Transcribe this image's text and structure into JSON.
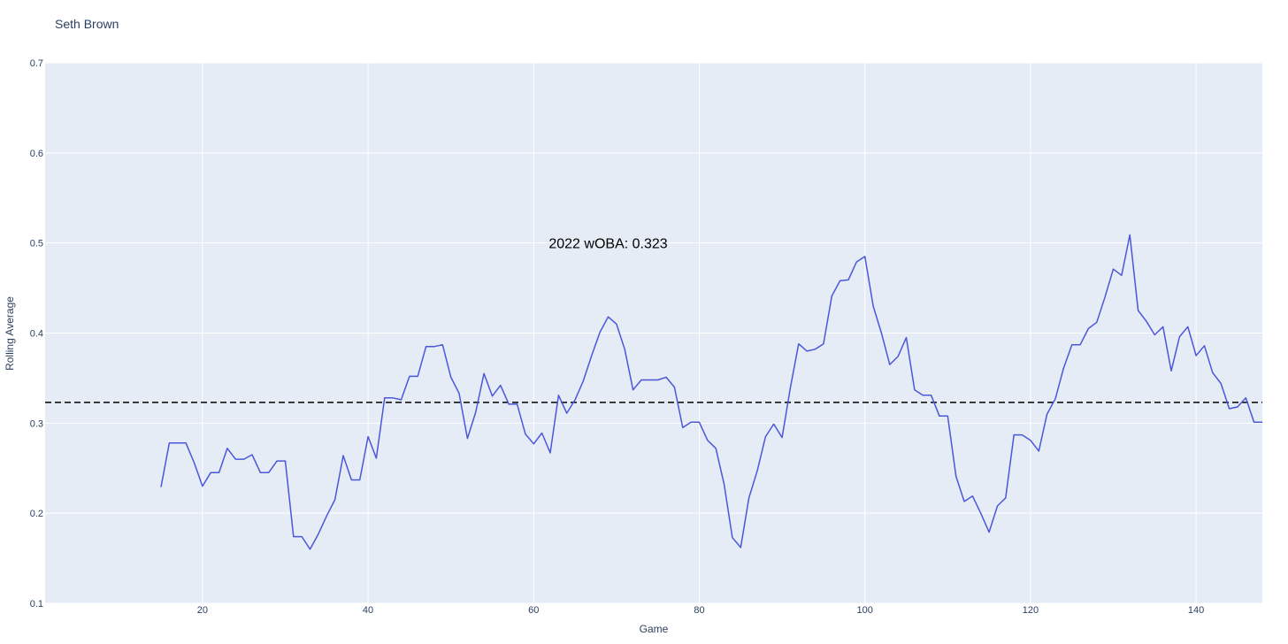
{
  "chart_data": {
    "type": "line",
    "title": "Seth Brown",
    "xlabel": "Game",
    "ylabel": "Rolling Average",
    "xlim": [
      1,
      148
    ],
    "ylim": [
      0.1,
      0.7
    ],
    "x_ticks": [
      20,
      40,
      60,
      80,
      100,
      120,
      140
    ],
    "y_ticks": [
      0.1,
      0.2,
      0.3,
      0.4,
      0.5,
      0.6,
      0.7
    ],
    "x_tick_labels": [
      "20",
      "40",
      "60",
      "80",
      "100",
      "120",
      "140"
    ],
    "y_tick_labels": [
      "0.1",
      "0.2",
      "0.3",
      "0.4",
      "0.5",
      "0.6",
      "0.7"
    ],
    "grid": true,
    "series": [
      {
        "color": "#4a57d9",
        "x": [
          15,
          16,
          17,
          18,
          19,
          20,
          21,
          22,
          23,
          24,
          25,
          26,
          27,
          28,
          29,
          30,
          31,
          32,
          33,
          34,
          35,
          36,
          37,
          38,
          39,
          40,
          41,
          42,
          43,
          44,
          45,
          46,
          47,
          48,
          49,
          50,
          51,
          52,
          53,
          54,
          55,
          56,
          57,
          58,
          59,
          60,
          61,
          62,
          63,
          64,
          65,
          66,
          67,
          68,
          69,
          70,
          71,
          72,
          73,
          74,
          75,
          76,
          77,
          78,
          79,
          80,
          81,
          82,
          83,
          84,
          85,
          86,
          87,
          88,
          89,
          90,
          91,
          92,
          93,
          94,
          95,
          96,
          97,
          98,
          99,
          100,
          101,
          102,
          103,
          104,
          105,
          106,
          107,
          108,
          109,
          110,
          111,
          112,
          113,
          114,
          115,
          116,
          117,
          118,
          119,
          120,
          121,
          122,
          123,
          124,
          125,
          126,
          127,
          128,
          129,
          130,
          131,
          132,
          133,
          134,
          135,
          136,
          137,
          138,
          139,
          140,
          141,
          142,
          143,
          144,
          145,
          146,
          147,
          148
        ],
        "y": [
          0.229,
          0.278,
          0.278,
          0.278,
          0.256,
          0.23,
          0.245,
          0.245,
          0.272,
          0.26,
          0.26,
          0.265,
          0.245,
          0.245,
          0.258,
          0.258,
          0.174,
          0.174,
          0.16,
          0.177,
          0.197,
          0.215,
          0.264,
          0.237,
          0.237,
          0.285,
          0.261,
          0.328,
          0.328,
          0.326,
          0.352,
          0.352,
          0.385,
          0.385,
          0.387,
          0.351,
          0.333,
          0.283,
          0.312,
          0.355,
          0.33,
          0.342,
          0.321,
          0.321,
          0.288,
          0.277,
          0.289,
          0.267,
          0.331,
          0.311,
          0.326,
          0.347,
          0.375,
          0.401,
          0.418,
          0.41,
          0.382,
          0.337,
          0.348,
          0.348,
          0.348,
          0.351,
          0.34,
          0.295,
          0.301,
          0.301,
          0.281,
          0.272,
          0.232,
          0.173,
          0.162,
          0.217,
          0.247,
          0.285,
          0.299,
          0.284,
          0.339,
          0.388,
          0.38,
          0.382,
          0.388,
          0.441,
          0.458,
          0.459,
          0.479,
          0.485,
          0.43,
          0.4,
          0.365,
          0.374,
          0.395,
          0.337,
          0.331,
          0.331,
          0.308,
          0.308,
          0.241,
          0.213,
          0.219,
          0.2,
          0.179,
          0.208,
          0.217,
          0.287,
          0.287,
          0.281,
          0.269,
          0.31,
          0.327,
          0.361,
          0.387,
          0.387,
          0.405,
          0.412,
          0.44,
          0.471,
          0.464,
          0.509,
          0.425,
          0.413,
          0.398,
          0.407,
          0.358,
          0.396,
          0.407,
          0.375,
          0.386,
          0.356,
          0.344,
          0.316,
          0.318,
          0.328,
          0.301,
          0.301
        ]
      }
    ],
    "reference_line": {
      "y": 0.323,
      "style": "dashed",
      "color": "#000000"
    },
    "annotation": {
      "text": "2022 wOBA: 0.323",
      "x": 69,
      "y": 0.5
    }
  },
  "colors": {
    "plot_bg": "#e5ecf6",
    "grid": "#ffffff",
    "line": "#4a57d9"
  }
}
